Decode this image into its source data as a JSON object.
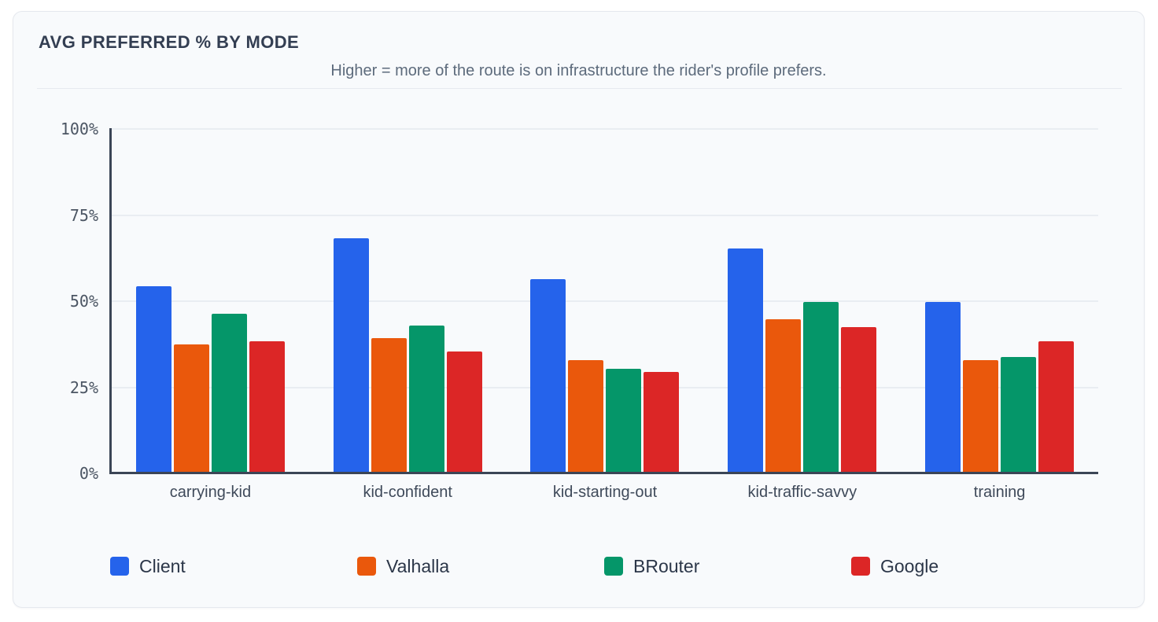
{
  "header": {
    "title": "AVG PREFERRED % BY MODE",
    "subtitle": "Higher = more of the route is on infrastructure the rider's profile prefers."
  },
  "chart_data": {
    "type": "bar",
    "title": "AVG PREFERRED % BY MODE",
    "subtitle": "Higher = more of the route is on infrastructure the rider's profile prefers.",
    "categories": [
      "carrying-kid",
      "kid-confident",
      "kid-starting-out",
      "kid-traffic-savvy",
      "training"
    ],
    "series": [
      {
        "name": "Client",
        "color": "#2563eb",
        "values": [
          54,
          68,
          56,
          65,
          49.5
        ]
      },
      {
        "name": "Valhalla",
        "color": "#ea580c",
        "values": [
          37,
          39,
          32.5,
          44.5,
          32.5
        ]
      },
      {
        "name": "BRouter",
        "color": "#059669",
        "values": [
          46,
          42.5,
          30,
          49.5,
          33.5
        ]
      },
      {
        "name": "Google",
        "color": "#dc2626",
        "values": [
          38,
          35,
          29,
          42,
          38
        ]
      }
    ],
    "xlabel": "",
    "ylabel": "",
    "ylim": [
      0,
      100
    ],
    "yticks": [
      0,
      25,
      50,
      75,
      100
    ],
    "ytick_suffix": "%",
    "grid": true,
    "legend_position": "bottom"
  },
  "colors": {
    "card_background": "#f8fafc",
    "card_border": "#e5e8ee",
    "axis": "#3b4556",
    "gridline": "#e9edf2",
    "title_text": "#333e52",
    "subtitle_text": "#5d6b7c",
    "tick_text": "#4b5563"
  }
}
